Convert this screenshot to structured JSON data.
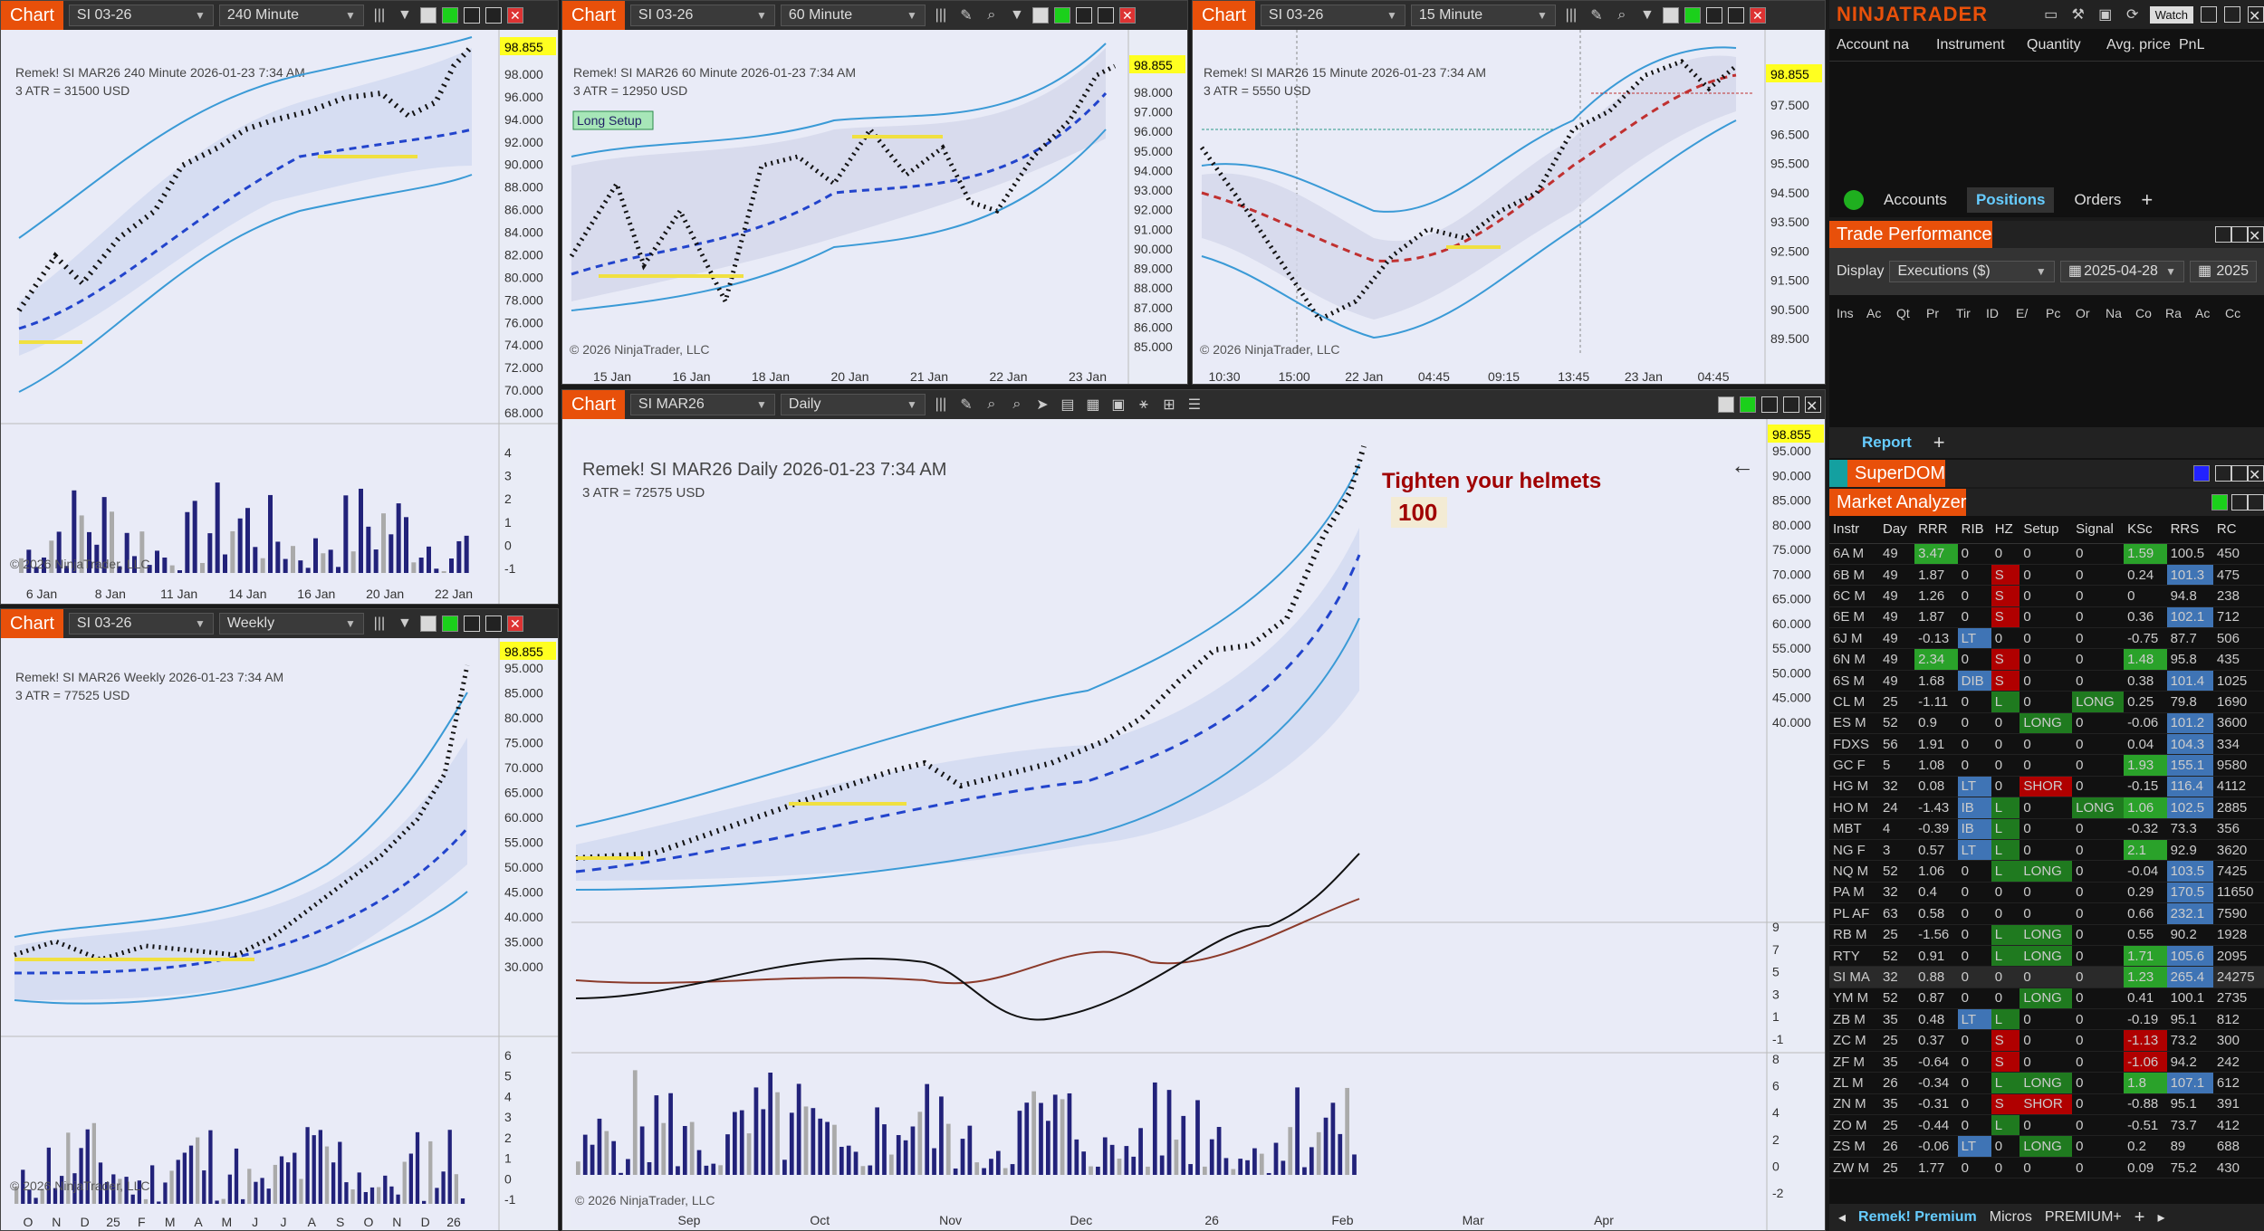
{
  "app": {
    "brand": "NINJATRADER",
    "watch_label": "Watch"
  },
  "charts": [
    {
      "id": "c240",
      "tab": "Chart",
      "instrument": "SI 03-26",
      "period": "240 Minute",
      "header": "Remek!  SI MAR26  240 Minute  2026-01-23 7:34 AM",
      "atr": "3 ATR = 31500 USD",
      "price_tag": "98.855",
      "prices": [
        "98.000",
        "96.000",
        "94.000",
        "92.000",
        "90.000",
        "88.000",
        "86.000",
        "84.000",
        "82.000",
        "80.000",
        "78.000",
        "76.000",
        "74.000",
        "72.000",
        "70.000",
        "68.000"
      ],
      "ind_ticks": [
        "4",
        "3",
        "2",
        "1",
        "0",
        "-1"
      ],
      "dates": [
        "6 Jan",
        "8 Jan",
        "11 Jan",
        "14 Jan",
        "16 Jan",
        "20 Jan",
        "22 Jan"
      ],
      "copyright": "© 2026 NinjaTrader, LLC"
    },
    {
      "id": "c60",
      "tab": "Chart",
      "instrument": "SI 03-26",
      "period": "60 Minute",
      "header": "Remek!  SI MAR26  60 Minute  2026-01-23 7:34 AM",
      "atr": "3 ATR = 12950 USD",
      "setup": "Long Setup",
      "price_tag": "98.855",
      "prices": [
        "98.000",
        "97.000",
        "96.000",
        "95.000",
        "94.000",
        "93.000",
        "92.000",
        "91.000",
        "90.000",
        "89.000",
        "88.000",
        "87.000",
        "86.000",
        "85.000"
      ],
      "dates": [
        "15 Jan",
        "16 Jan",
        "18 Jan",
        "20 Jan",
        "21 Jan",
        "22 Jan",
        "23 Jan"
      ],
      "copyright": "© 2026 NinjaTrader, LLC"
    },
    {
      "id": "c15",
      "tab": "Chart",
      "instrument": "SI 03-26",
      "period": "15 Minute",
      "header": "Remek!  SI MAR26  15 Minute  2026-01-23 7:34 AM",
      "atr": "3 ATR = 5550 USD",
      "price_tag": "98.855",
      "prices": [
        "98.500",
        "97.500",
        "96.500",
        "95.500",
        "94.500",
        "93.500",
        "92.500",
        "91.500",
        "90.500",
        "89.500"
      ],
      "dates": [
        "10:30",
        "15:00",
        "22 Jan",
        "04:45",
        "09:15",
        "13:45",
        "23 Jan",
        "04:45"
      ],
      "copyright": "© 2026 NinjaTrader, LLC"
    },
    {
      "id": "cw",
      "tab": "Chart",
      "instrument": "SI 03-26",
      "period": "Weekly",
      "header": "Remek!  SI MAR26  Weekly  2026-01-23 7:34 AM",
      "atr": "3 ATR = 77525 USD",
      "price_tag": "98.855",
      "prices": [
        "95.000",
        "85.000",
        "80.000",
        "75.000",
        "70.000",
        "65.000",
        "60.000",
        "55.000",
        "50.000",
        "45.000",
        "40.000",
        "35.000",
        "30.000"
      ],
      "ind_ticks": [
        "6",
        "5",
        "4",
        "3",
        "2",
        "1",
        "0",
        "-1"
      ],
      "dates": [
        "O",
        "N",
        "D",
        "25",
        "F",
        "M",
        "A",
        "M",
        "J",
        "J",
        "A",
        "S",
        "O",
        "N",
        "D",
        "26"
      ],
      "copyright": "© 2026 NinjaTrader, LLC"
    },
    {
      "id": "cd",
      "tab": "Chart",
      "instrument": "SI MAR26",
      "period": "Daily",
      "header": "Remek!  SI MAR26  Daily  2026-01-23 7:34 AM",
      "atr": "3 ATR = 72575 USD",
      "note1": "Tighten your helmets",
      "note2": "100",
      "price_tag": "98.855",
      "prices": [
        "95.000",
        "90.000",
        "85.000",
        "80.000",
        "75.000",
        "70.000",
        "65.000",
        "60.000",
        "55.000",
        "50.000",
        "45.000",
        "40.000"
      ],
      "osc_ticks": [
        "9",
        "7",
        "5",
        "3",
        "1",
        "-1"
      ],
      "ind_ticks": [
        "8",
        "6",
        "4",
        "2",
        "0",
        "-2"
      ],
      "dates": [
        "Sep",
        "Oct",
        "Nov",
        "Dec",
        "26",
        "Feb",
        "Mar",
        "Apr"
      ],
      "copyright": "© 2026 NinjaTrader, LLC"
    }
  ],
  "positions": {
    "columns": [
      "Account na",
      "Instrument",
      "Quantity",
      "Avg. price",
      "PnL"
    ],
    "tabs": [
      "Accounts",
      "Positions",
      "Orders"
    ],
    "add": "+"
  },
  "trade_perf": {
    "title": "Trade Performance",
    "display_label": "Display",
    "display_value": "Executions ($)",
    "date1": "2025-04-28",
    "date2": "2025",
    "cols": [
      "Ins",
      "Ac",
      "Qt",
      "Pr",
      "Tir",
      "ID",
      "E/",
      "Pc",
      "Or",
      "Na",
      "Co",
      "Ra",
      "Ac",
      "Cc"
    ],
    "report": "Report",
    "add": "+"
  },
  "superdom": {
    "title": "SuperDOM"
  },
  "market_analyzer": {
    "title": "Market Analyzer",
    "columns": [
      "Instr",
      "Day",
      "RRR",
      "RIB",
      "HZ",
      "Setup",
      "Signal",
      "KSc",
      "RRS",
      "RC"
    ],
    "rows": [
      [
        "6A M",
        49,
        "3.47",
        "0",
        "0",
        "0",
        "0",
        "1.59",
        "100.5",
        "450"
      ],
      [
        "6B M",
        49,
        "1.87",
        "0",
        "S",
        "0",
        "0",
        "0.24",
        "101.3",
        "475"
      ],
      [
        "6C M",
        49,
        "1.26",
        "0",
        "S",
        "0",
        "0",
        "0",
        "94.8",
        "238"
      ],
      [
        "6E M",
        49,
        "1.87",
        "0",
        "S",
        "0",
        "0",
        "0.36",
        "102.1",
        "712"
      ],
      [
        "6J M",
        49,
        "-0.13",
        "LT",
        "0",
        "0",
        "0",
        "-0.75",
        "87.7",
        "506"
      ],
      [
        "6N M",
        49,
        "2.34",
        "0",
        "S",
        "0",
        "0",
        "1.48",
        "95.8",
        "435"
      ],
      [
        "6S M",
        49,
        "1.68",
        "DIB",
        "S",
        "0",
        "0",
        "0.38",
        "101.4",
        "1025"
      ],
      [
        "CL M",
        25,
        "-1.11",
        "0",
        "L",
        "0",
        "LONG",
        "0.25",
        "79.8",
        "1690"
      ],
      [
        "ES M",
        52,
        "0.9",
        "0",
        "0",
        "LONG",
        "0",
        "-0.06",
        "101.2",
        "3600"
      ],
      [
        "FDXS",
        56,
        "1.91",
        "0",
        "0",
        "0",
        "0",
        "0.04",
        "104.3",
        "334"
      ],
      [
        "GC F",
        5,
        "1.08",
        "0",
        "0",
        "0",
        "0",
        "1.93",
        "155.1",
        "9580"
      ],
      [
        "HG M",
        32,
        "0.08",
        "LT",
        "0",
        "SHOR",
        "0",
        "-0.15",
        "116.4",
        "4112"
      ],
      [
        "HO M",
        24,
        "-1.43",
        "IB",
        "L",
        "0",
        "LONG",
        "1.06",
        "102.5",
        "2885"
      ],
      [
        "MBT",
        4,
        "-0.39",
        "IB",
        "L",
        "0",
        "0",
        "-0.32",
        "73.3",
        "356"
      ],
      [
        "NG F",
        3,
        "0.57",
        "LT",
        "L",
        "0",
        "0",
        "2.1",
        "92.9",
        "3620"
      ],
      [
        "NQ M",
        52,
        "1.06",
        "0",
        "L",
        "LONG",
        "0",
        "-0.04",
        "103.5",
        "7425"
      ],
      [
        "PA M",
        32,
        "0.4",
        "0",
        "0",
        "0",
        "0",
        "0.29",
        "170.5",
        "11650"
      ],
      [
        "PL AF",
        63,
        "0.58",
        "0",
        "0",
        "0",
        "0",
        "0.66",
        "232.1",
        "7590"
      ],
      [
        "RB M",
        25,
        "-1.56",
        "0",
        "L",
        "LONG",
        "0",
        "0.55",
        "90.2",
        "1928"
      ],
      [
        "RTY",
        52,
        "0.91",
        "0",
        "L",
        "LONG",
        "0",
        "1.71",
        "105.6",
        "2095"
      ],
      [
        "SI MA",
        32,
        "0.88",
        "0",
        "0",
        "0",
        "0",
        "1.23",
        "265.4",
        "24275"
      ],
      [
        "YM M",
        52,
        "0.87",
        "0",
        "0",
        "LONG",
        "0",
        "0.41",
        "100.1",
        "2735"
      ],
      [
        "ZB M",
        35,
        "0.48",
        "LT",
        "L",
        "0",
        "0",
        "-0.19",
        "95.1",
        "812"
      ],
      [
        "ZC M",
        25,
        "0.37",
        "0",
        "S",
        "0",
        "0",
        "-1.13",
        "73.2",
        "300"
      ],
      [
        "ZF M",
        35,
        "-0.64",
        "0",
        "S",
        "0",
        "0",
        "-1.06",
        "94.2",
        "242"
      ],
      [
        "ZL M",
        26,
        "-0.34",
        "0",
        "L",
        "LONG",
        "0",
        "1.8",
        "107.1",
        "612"
      ],
      [
        "ZN M",
        35,
        "-0.31",
        "0",
        "S",
        "SHOR",
        "0",
        "-0.88",
        "95.1",
        "391"
      ],
      [
        "ZO M",
        25,
        "-0.44",
        "0",
        "L",
        "0",
        "0",
        "-0.51",
        "73.7",
        "412"
      ],
      [
        "ZS M",
        26,
        "-0.06",
        "LT",
        "0",
        "LONG",
        "0",
        "0.2",
        "89",
        "688"
      ],
      [
        "ZW M",
        25,
        "1.77",
        "0",
        "0",
        "0",
        "0",
        "0.09",
        "75.2",
        "430"
      ]
    ],
    "bottom_tabs": [
      "Remek! Premium",
      "Micros",
      "PREMIUM+"
    ],
    "add": "+"
  }
}
